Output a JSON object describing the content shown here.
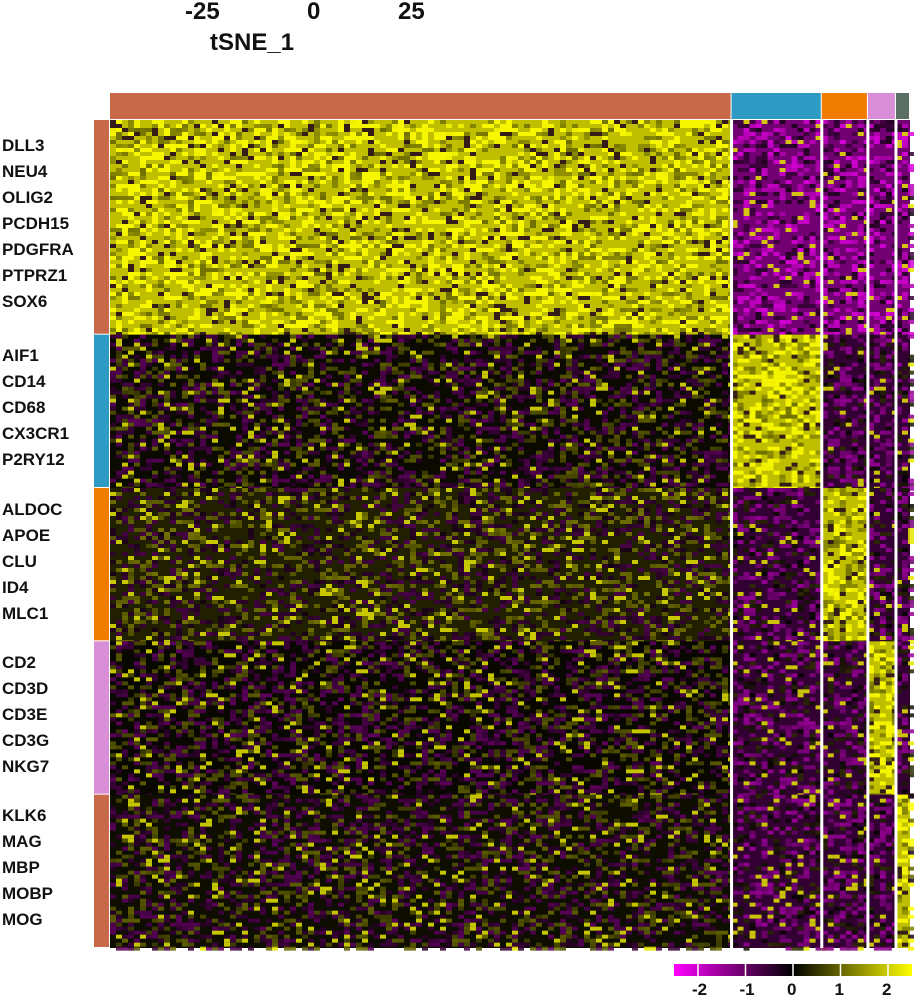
{
  "top_axis": {
    "ticks": [
      "-25",
      "0",
      "25"
    ],
    "title": "tSNE_1"
  },
  "chart_data": {
    "type": "heatmap",
    "title": "",
    "cell_clusters": [
      {
        "color": "#C8694A",
        "cells": 620
      },
      {
        "color": "#2E9BC4",
        "cells": 90
      },
      {
        "color": "#F07D00",
        "cells": 46
      },
      {
        "color": "#D98FD8",
        "cells": 28
      },
      {
        "color": "#5B6E63",
        "cells": 14
      }
    ],
    "gene_groups": [
      {
        "color": "#C8694A",
        "genes": [
          "DLL3",
          "NEU4",
          "OLIG2",
          "PCDH15",
          "PDGFRA",
          "PTPRZ1",
          "SOX6"
        ],
        "high_cluster": 0,
        "low_level": 0.35
      },
      {
        "color": "#2E9BC4",
        "genes": [
          "AIF1",
          "CD14",
          "CD68",
          "CX3CR1",
          "P2RY12"
        ],
        "high_cluster": 1,
        "low_level": 0.08
      },
      {
        "color": "#F07D00",
        "genes": [
          "ALDOC",
          "APOE",
          "CLU",
          "ID4",
          "MLC1"
        ],
        "high_cluster": 2,
        "low_level": 0.25
      },
      {
        "color": "#D98FD8",
        "genes": [
          "CD2",
          "CD3D",
          "CD3E",
          "CD3G",
          "NKG7"
        ],
        "high_cluster": 3,
        "low_level": 0.06
      },
      {
        "color": "#C8694A",
        "genes": [
          "KLK6",
          "MAG",
          "MBP",
          "MOBP",
          "MOG"
        ],
        "high_cluster": 4,
        "low_level": 0.1
      }
    ],
    "color_scale": {
      "low": "#FF00FF",
      "mid": "#000000",
      "high": "#FFFF00",
      "ticks": [
        "-2",
        "-1",
        "0",
        "1",
        "2"
      ]
    },
    "legend": "bottom-right"
  }
}
